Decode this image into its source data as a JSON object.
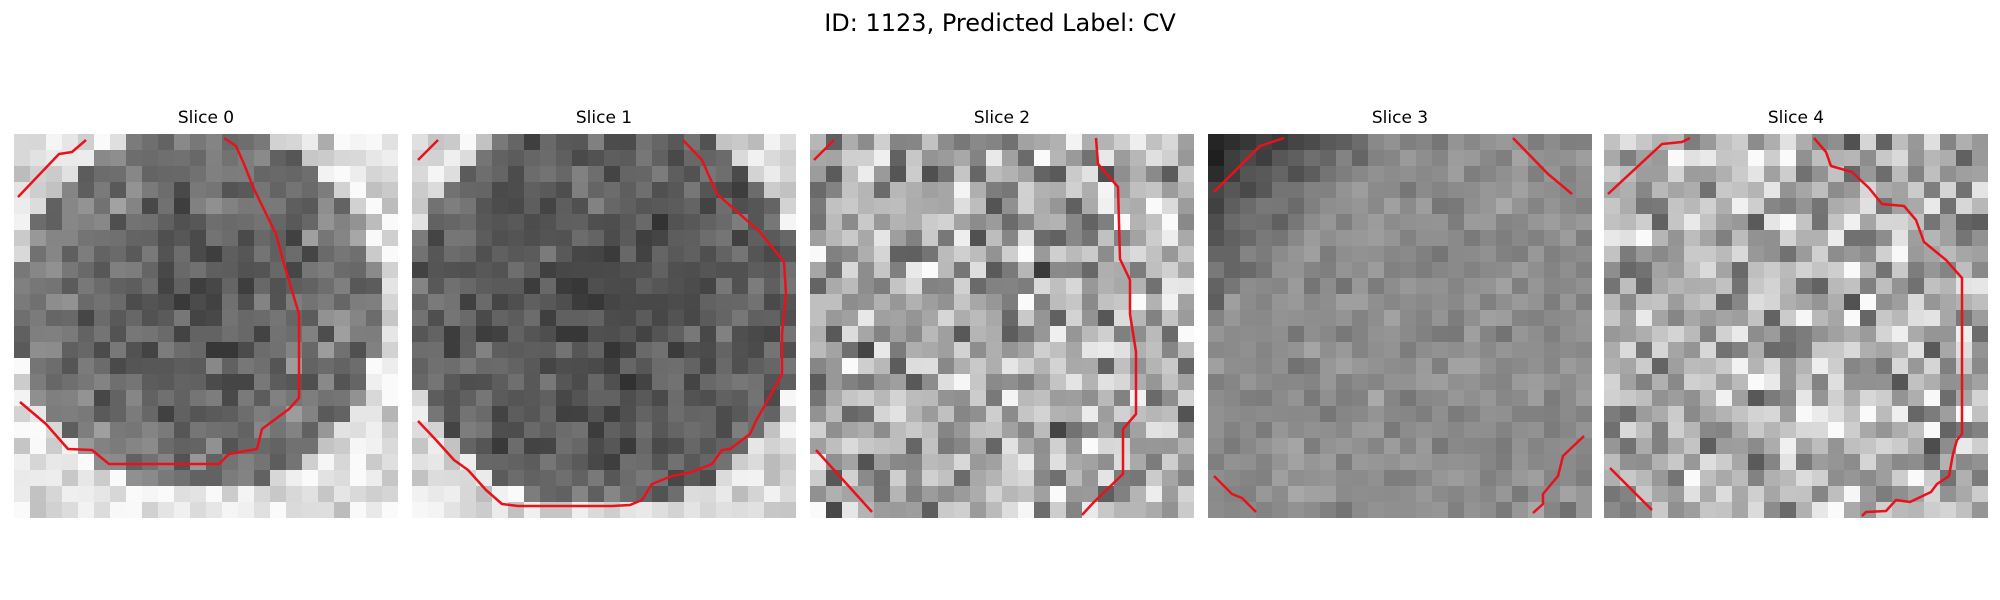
{
  "figure": {
    "title": "ID: 1123, Predicted Label: CV"
  },
  "panels": [
    {
      "title": "Slice 0"
    },
    {
      "title": "Slice 1"
    },
    {
      "title": "Slice 2"
    },
    {
      "title": "Slice 3"
    },
    {
      "title": "Slice 4"
    }
  ],
  "colors": {
    "contour": "#e8111c",
    "background": "#ffffff"
  }
}
